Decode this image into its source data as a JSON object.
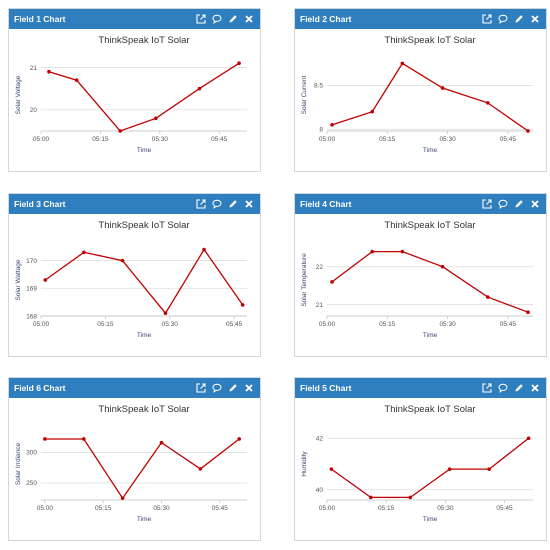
{
  "charts": [
    {
      "header": "Field 1 Chart",
      "chart_data": {
        "type": "line",
        "title": "ThinkSpeak IoT Solar",
        "xlabel": "Time",
        "ylabel": "Solar Voltage",
        "x": [
          2,
          9,
          20,
          29,
          40,
          50
        ],
        "y": [
          20.9,
          20.7,
          19.5,
          19.8,
          20.5,
          21.1
        ],
        "xlim": [
          0,
          52
        ],
        "ylim": [
          19.5,
          21.2
        ],
        "xticks": [
          {
            "v": 0,
            "label": "05:00"
          },
          {
            "v": 15,
            "label": "05:15"
          },
          {
            "v": 30,
            "label": "05:30"
          },
          {
            "v": 45,
            "label": "05:45"
          }
        ],
        "yticks": [
          {
            "v": 20,
            "label": "20"
          },
          {
            "v": 21,
            "label": "21"
          }
        ],
        "grid": true,
        "color": "#c00000"
      }
    },
    {
      "header": "Field 2 Chart",
      "chart_data": {
        "type": "line",
        "title": "ThinkSpeak IoT Solar",
        "xlabel": "Time",
        "ylabel": "Solar Current",
        "x": [
          1,
          9,
          15,
          23,
          32,
          40
        ],
        "y": [
          8.05,
          8.2,
          8.75,
          8.47,
          8.3,
          7.98
        ],
        "xlim": [
          0,
          41
        ],
        "ylim": [
          7.98,
          8.8
        ],
        "xticks": [
          {
            "v": 0,
            "label": "05:00"
          },
          {
            "v": 12,
            "label": "05:15"
          },
          {
            "v": 24,
            "label": "05:30"
          },
          {
            "v": 36,
            "label": "05:45"
          }
        ],
        "yticks": [
          {
            "v": 8,
            "label": "8"
          },
          {
            "v": 8.5,
            "label": "8.5"
          }
        ],
        "grid": true,
        "color": "#c00000"
      }
    },
    {
      "header": "Field 3 Chart",
      "chart_data": {
        "type": "line",
        "title": "ThinkSpeak IoT Solar",
        "xlabel": "Time",
        "ylabel": "Solar Wattage",
        "x": [
          1,
          10,
          19,
          29,
          38,
          47
        ],
        "y": [
          169.3,
          170.3,
          170.0,
          168.1,
          170.4,
          168.4
        ],
        "xlim": [
          0,
          48
        ],
        "ylim": [
          168.0,
          170.6
        ],
        "xticks": [
          {
            "v": 0,
            "label": "05:00"
          },
          {
            "v": 15,
            "label": "05:15"
          },
          {
            "v": 30,
            "label": "05:30"
          },
          {
            "v": 45,
            "label": "05:45"
          }
        ],
        "yticks": [
          {
            "v": 168,
            "label": "168"
          },
          {
            "v": 169,
            "label": "169"
          },
          {
            "v": 170,
            "label": "170"
          }
        ],
        "grid": true,
        "color": "#c00000"
      }
    },
    {
      "header": "Field 4 Chart",
      "chart_data": {
        "type": "line",
        "title": "ThinkSpeak IoT Solar",
        "xlabel": "Time",
        "ylabel": "Solar Temperature",
        "x": [
          1,
          9,
          15,
          23,
          32,
          40
        ],
        "y": [
          21.6,
          22.4,
          22.4,
          22.0,
          21.2,
          20.8
        ],
        "xlim": [
          0,
          41
        ],
        "ylim": [
          20.7,
          22.6
        ],
        "xticks": [
          {
            "v": 0,
            "label": "05:00"
          },
          {
            "v": 12,
            "label": "05:15"
          },
          {
            "v": 24,
            "label": "05:30"
          },
          {
            "v": 36,
            "label": "05:45"
          }
        ],
        "yticks": [
          {
            "v": 21,
            "label": "21"
          },
          {
            "v": 22,
            "label": "22"
          }
        ],
        "grid": true,
        "color": "#c00000"
      }
    },
    {
      "header": "Field 6 Chart",
      "chart_data": {
        "type": "line",
        "title": "ThinkSpeak IoT Solar",
        "xlabel": "Time",
        "ylabel": "Solar Irrdiance",
        "x": [
          0,
          10,
          20,
          30,
          40,
          50
        ],
        "y": [
          322,
          322,
          225,
          316,
          273,
          322
        ],
        "xlim": [
          -1,
          52
        ],
        "ylim": [
          222,
          340
        ],
        "xticks": [
          {
            "v": 0,
            "label": "05:00"
          },
          {
            "v": 15,
            "label": "05:15"
          },
          {
            "v": 30,
            "label": "05:30"
          },
          {
            "v": 45,
            "label": "05:45"
          }
        ],
        "yticks": [
          {
            "v": 250,
            "label": "250"
          },
          {
            "v": 300,
            "label": "300"
          }
        ],
        "grid": true,
        "color": "#c00000"
      }
    },
    {
      "header": "Field 5 Chart",
      "chart_data": {
        "type": "line",
        "title": "ThinkSpeak IoT Solar",
        "xlabel": "Time",
        "ylabel": "Humidity",
        "x": [
          1,
          10,
          19,
          28,
          37,
          46
        ],
        "y": [
          40.8,
          39.7,
          39.7,
          40.8,
          40.8,
          42.0
        ],
        "xlim": [
          0,
          47
        ],
        "ylim": [
          39.6,
          42.4
        ],
        "xticks": [
          {
            "v": 0,
            "label": "05:00"
          },
          {
            "v": 13.5,
            "label": "05:15"
          },
          {
            "v": 27,
            "label": "05:30"
          },
          {
            "v": 40.5,
            "label": "05:45"
          }
        ],
        "yticks": [
          {
            "v": 40,
            "label": "40"
          },
          {
            "v": 42,
            "label": "42"
          }
        ],
        "grid": true,
        "color": "#c00000"
      }
    }
  ]
}
